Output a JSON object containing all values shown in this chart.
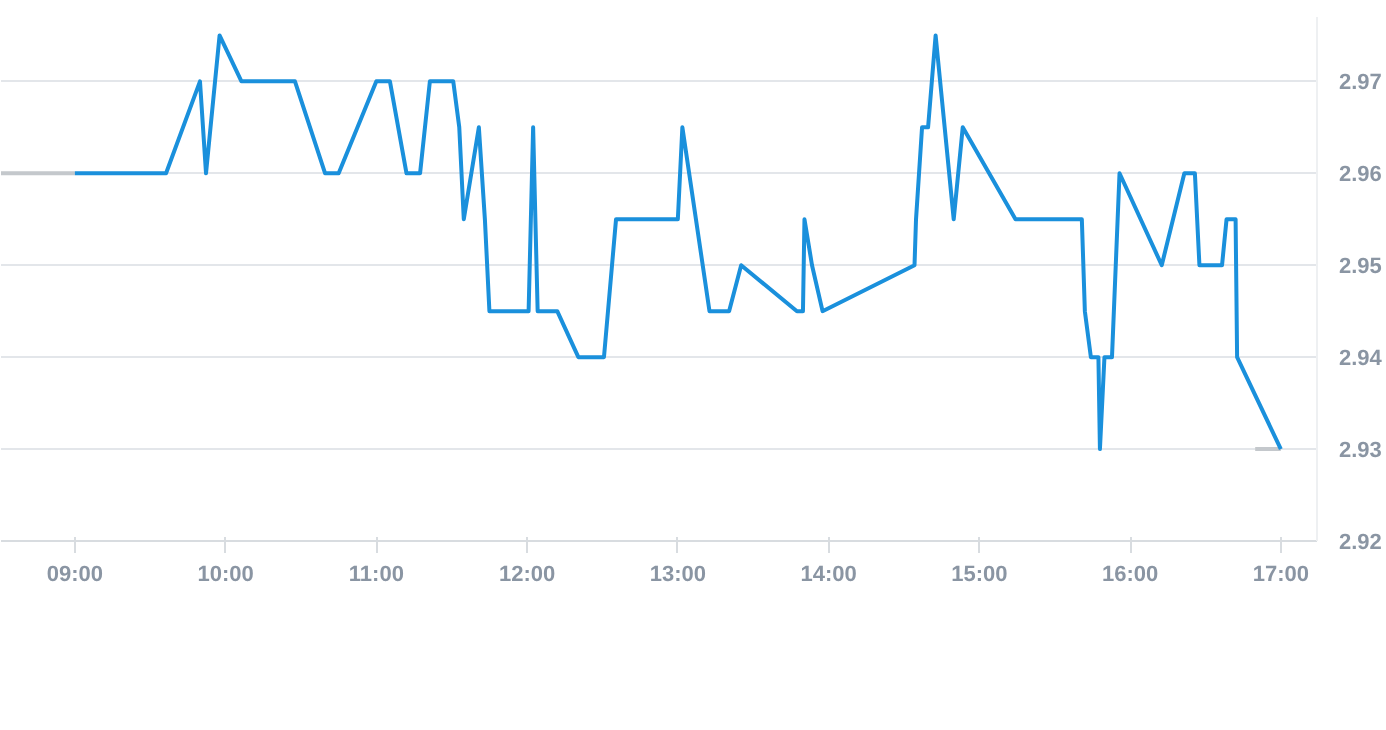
{
  "chart_data": {
    "type": "line",
    "xlim": [
      8.51,
      17.24
    ],
    "ylim": [
      2.92,
      2.977
    ],
    "xticks": [
      {
        "value": 9,
        "label": "09:00"
      },
      {
        "value": 10,
        "label": "10:00"
      },
      {
        "value": 11,
        "label": "11:00"
      },
      {
        "value": 12,
        "label": "12:00"
      },
      {
        "value": 13,
        "label": "13:00"
      },
      {
        "value": 14,
        "label": "14:00"
      },
      {
        "value": 15,
        "label": "15:00"
      },
      {
        "value": 16,
        "label": "16:00"
      },
      {
        "value": 17,
        "label": "17:00"
      }
    ],
    "yticks": [
      2.92,
      2.93,
      2.94,
      2.95,
      2.96,
      2.97
    ],
    "grid": "y",
    "marker": "none",
    "line_style": "solid",
    "series": [
      {
        "color": "#c4c8cc",
        "x": [
          8.51,
          9.0,
          null,
          16.83,
          17.0
        ],
        "values": [
          2.96,
          2.96,
          null,
          2.93,
          2.93
        ]
      },
      {
        "color": "#1a90dc",
        "x": [
          9.0,
          9.605,
          9.83,
          9.87,
          9.96,
          10.105,
          10.46,
          10.66,
          10.75,
          11.0,
          11.09,
          11.2,
          11.29,
          11.355,
          11.51,
          11.55,
          11.58,
          11.68,
          11.72,
          11.75,
          12.01,
          12.04,
          12.07,
          12.2,
          12.34,
          12.51,
          12.59,
          13.0,
          13.03,
          13.21,
          13.34,
          13.42,
          13.79,
          13.83,
          13.84,
          13.89,
          13.96,
          14.57,
          14.58,
          14.62,
          14.66,
          14.71,
          14.83,
          14.89,
          15.24,
          15.68,
          15.7,
          15.74,
          15.79,
          15.8,
          15.83,
          15.88,
          15.93,
          16.21,
          16.36,
          16.43,
          16.46,
          16.61,
          16.64,
          16.7,
          16.71,
          17.0
        ],
        "values": [
          2.96,
          2.96,
          2.97,
          2.96,
          2.975,
          2.97,
          2.97,
          2.96,
          2.96,
          2.97,
          2.97,
          2.96,
          2.96,
          2.97,
          2.97,
          2.965,
          2.955,
          2.965,
          2.955,
          2.945,
          2.945,
          2.965,
          2.945,
          2.945,
          2.94,
          2.94,
          2.955,
          2.955,
          2.965,
          2.945,
          2.945,
          2.95,
          2.945,
          2.945,
          2.955,
          2.95,
          2.945,
          2.95,
          2.955,
          2.965,
          2.965,
          2.975,
          2.955,
          2.965,
          2.955,
          2.955,
          2.945,
          2.94,
          2.94,
          2.93,
          2.94,
          2.94,
          2.96,
          2.95,
          2.96,
          2.96,
          2.95,
          2.95,
          2.955,
          2.955,
          2.94,
          2.93
        ]
      }
    ]
  }
}
